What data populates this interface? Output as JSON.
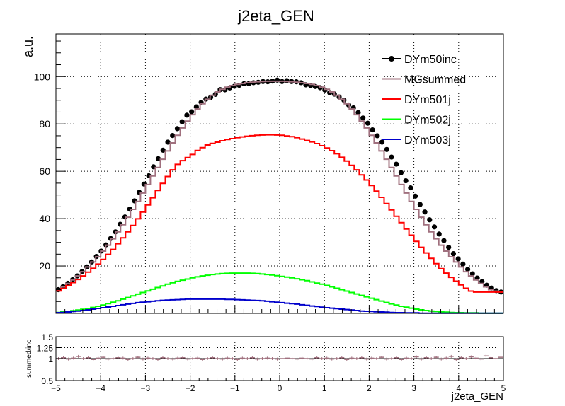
{
  "chart_data": [
    {
      "type": "line",
      "title": "j2eta_GEN",
      "xlabel": "",
      "ylabel": "a.u.",
      "xlim": [
        -5,
        5
      ],
      "ylim": [
        0,
        118
      ],
      "yticks": [
        "20",
        "40",
        "60",
        "80",
        "100"
      ],
      "grid": true,
      "legend_position": "top-right",
      "series": [
        {
          "name": "DYm50inc",
          "color": "#000000",
          "style": "markers",
          "values": [
            10.0,
            11.3,
            12.7,
            14.2,
            15.8,
            17.7,
            19.6,
            21.7,
            24.0,
            26.3,
            28.9,
            31.6,
            34.4,
            37.6,
            40.7,
            44.0,
            47.5,
            51.1,
            54.6,
            58.1,
            61.9,
            65.3,
            68.9,
            72.3,
            75.1,
            78.0,
            80.9,
            83.7,
            85.1,
            87.2,
            89.1,
            90.5,
            91.2,
            92.5,
            94.5,
            94.4,
            95.2,
            95.9,
            96.3,
            97.0,
            97.0,
            97.4,
            97.6,
            97.9,
            97.8,
            98.1,
            98.5,
            97.9,
            98.3,
            97.9,
            97.8,
            97.4,
            96.5,
            96.2,
            95.8,
            95.3,
            94.3,
            93.2,
            92.6,
            91.4,
            90.0,
            88.0,
            86.8,
            84.8,
            82.5,
            80.3,
            77.5,
            75.0,
            72.3,
            69.2,
            66.0,
            63.0,
            59.4,
            56.0,
            53.0,
            49.5,
            46.0,
            42.8,
            39.5,
            36.5,
            33.5,
            30.7,
            27.9,
            25.2,
            23.0,
            20.8,
            18.6,
            16.7,
            14.9,
            13.4,
            11.9,
            10.7,
            9.6,
            9.0
          ]
        },
        {
          "name": "MGsummed",
          "color": "#a0707e",
          "style": "hist",
          "values": [
            10.0,
            11.2,
            12.6,
            14.1,
            15.8,
            17.6,
            19.6,
            21.7,
            23.9,
            26.3,
            28.8,
            31.5,
            34.4,
            37.4,
            40.6,
            43.9,
            47.3,
            50.8,
            54.4,
            58.0,
            61.6,
            65.1,
            68.6,
            72.0,
            75.2,
            78.3,
            81.2,
            83.9,
            86.3,
            88.5,
            90.4,
            92.1,
            93.5,
            94.6,
            95.5,
            96.2,
            96.7,
            97.1,
            97.4,
            97.6,
            97.8,
            97.9,
            98.0,
            98.0,
            98.0,
            98.0,
            97.9,
            97.8,
            97.6,
            97.4,
            97.1,
            96.7,
            96.2,
            95.5,
            94.6,
            93.5,
            92.1,
            90.4,
            88.5,
            86.3,
            83.9,
            81.2,
            78.3,
            75.2,
            72.0,
            68.6,
            65.1,
            61.6,
            58.0,
            54.4,
            50.8,
            47.3,
            43.9,
            40.6,
            37.4,
            34.4,
            31.5,
            28.8,
            26.3,
            23.9,
            21.7,
            19.6,
            17.6,
            15.8,
            14.1,
            12.6,
            11.2,
            10.0,
            9.4,
            9.0
          ]
        },
        {
          "name": "DYm501j",
          "color": "#ff0000",
          "style": "hist",
          "values": [
            9.5,
            10.5,
            11.7,
            13.0,
            14.3,
            15.8,
            17.4,
            19.0,
            20.8,
            22.8,
            24.9,
            27.0,
            29.4,
            31.9,
            34.4,
            37.1,
            39.9,
            42.8,
            45.8,
            48.8,
            51.9,
            54.9,
            57.8,
            60.6,
            62.9,
            64.5,
            65.8,
            67.1,
            68.8,
            70.0,
            71.1,
            71.8,
            72.3,
            72.9,
            73.4,
            73.8,
            74.2,
            74.5,
            74.8,
            75.0,
            75.2,
            75.3,
            75.4,
            75.4,
            75.3,
            75.2,
            74.9,
            74.6,
            74.2,
            73.6,
            73.0,
            72.4,
            71.7,
            70.8,
            69.8,
            68.7,
            67.4,
            65.9,
            64.3,
            62.5,
            60.6,
            58.5,
            56.3,
            54.0,
            51.6,
            49.0,
            46.4,
            43.7,
            41.0,
            38.3,
            35.6,
            33.0,
            30.4,
            27.9,
            25.5,
            23.2,
            21.0,
            18.9,
            17.0,
            15.2,
            13.6,
            12.0,
            10.6,
            9.4,
            9.0,
            9.0,
            9.0,
            9.0,
            9.0,
            9.0
          ]
        },
        {
          "name": "DYm502j",
          "color": "#00ff00",
          "style": "hist",
          "values": [
            0.4,
            0.6,
            0.8,
            1.1,
            1.4,
            1.7,
            2.1,
            2.5,
            3.0,
            3.5,
            4.1,
            4.7,
            5.3,
            6.0,
            6.7,
            7.4,
            8.1,
            8.8,
            9.5,
            10.2,
            10.9,
            11.6,
            12.3,
            12.9,
            13.5,
            14.0,
            14.5,
            15.0,
            15.4,
            15.8,
            16.1,
            16.4,
            16.6,
            16.8,
            16.9,
            17.0,
            17.0,
            17.0,
            17.0,
            16.9,
            16.8,
            16.6,
            16.4,
            16.2,
            15.9,
            15.6,
            15.3,
            15.0,
            14.6,
            14.2,
            13.8,
            13.3,
            12.8,
            12.3,
            11.8,
            11.2,
            10.6,
            10.0,
            9.4,
            8.8,
            8.2,
            7.6,
            7.0,
            6.4,
            5.8,
            5.2,
            4.6,
            4.0,
            3.5,
            3.0,
            2.6,
            2.2,
            1.8,
            1.5,
            1.2,
            1.0,
            0.8,
            0.6,
            0.5,
            0.4,
            0.3,
            0.3,
            0.2,
            0.2,
            0.2,
            0.1,
            0.1,
            0.1,
            0.1,
            0.1
          ]
        },
        {
          "name": "DYm503j",
          "color": "#0000cc",
          "style": "hist",
          "values": [
            0.3,
            0.4,
            0.6,
            0.8,
            1.0,
            1.2,
            1.5,
            1.8,
            2.1,
            2.4,
            2.7,
            3.0,
            3.3,
            3.6,
            3.9,
            4.2,
            4.5,
            4.7,
            4.9,
            5.1,
            5.3,
            5.5,
            5.6,
            5.7,
            5.8,
            5.9,
            6.0,
            6.0,
            6.0,
            6.0,
            6.0,
            6.0,
            6.0,
            6.0,
            5.9,
            5.9,
            5.8,
            5.7,
            5.6,
            5.5,
            5.4,
            5.3,
            5.1,
            4.9,
            4.7,
            4.5,
            4.3,
            4.1,
            3.9,
            3.6,
            3.4,
            3.1,
            2.9,
            2.6,
            2.4,
            2.2,
            2.0,
            1.8,
            1.6,
            1.4,
            1.2,
            1.0,
            0.9,
            0.8,
            0.7,
            0.6,
            0.5,
            0.4,
            0.3,
            0.3,
            0.2,
            0.2,
            0.2,
            0.1,
            0.1,
            0.1,
            0.1,
            0.1,
            0.1,
            0.1,
            0.1,
            0.1,
            0.1,
            0.1,
            0.1,
            0.1,
            0.1,
            0.1,
            0.1,
            0.1
          ]
        }
      ]
    },
    {
      "type": "scatter",
      "title": "",
      "xlabel": "j2eta_GEN",
      "ylabel": "summed/inc",
      "xlim": [
        -5,
        5
      ],
      "ylim": [
        0.5,
        1.5
      ],
      "xticks": [
        "−5",
        "−4",
        "−3",
        "−2",
        "−1",
        "0",
        "1",
        "2",
        "3",
        "4",
        "5"
      ],
      "yticks": [
        "0.5",
        "1",
        "1.25",
        "1.5"
      ],
      "grid": true,
      "series": [
        {
          "name": "",
          "color": "#a0707e",
          "values": [
            1.0,
            1.02,
            0.99,
            1.01,
            1.05,
            1.0,
            1.02,
            0.98,
            1.01,
            1.03,
            0.99,
            1.0,
            1.02,
            1.01,
            0.98,
            1.0,
            1.03,
            0.99,
            1.01,
            1.0,
            0.98,
            1.02,
            1.0,
            0.99,
            1.01,
            1.02,
            0.99,
            1.0,
            1.01,
            0.98,
            1.0,
            1.02,
            1.0,
            0.99,
            1.01,
            1.0,
            0.98,
            1.01,
            1.0,
            1.02,
            0.99,
            1.0,
            1.01,
            1.0,
            0.99,
            1.0,
            1.01,
            1.0,
            0.99,
            1.01,
            1.0,
            0.99,
            1.02,
            1.0,
            1.01,
            0.99,
            1.0,
            1.02,
            0.98,
            1.01,
            1.0,
            1.02,
            0.99,
            1.01,
            1.0,
            1.03,
            0.99,
            1.0,
            1.02,
            0.98,
            1.01,
            1.0,
            1.04,
            0.99,
            1.02,
            1.0,
            1.03,
            0.99,
            1.01,
            1.05,
            0.98,
            1.02,
            1.0,
            1.04,
            1.01,
            0.99,
            1.06,
            1.02,
            1.0,
            1.03
          ]
        }
      ]
    }
  ]
}
